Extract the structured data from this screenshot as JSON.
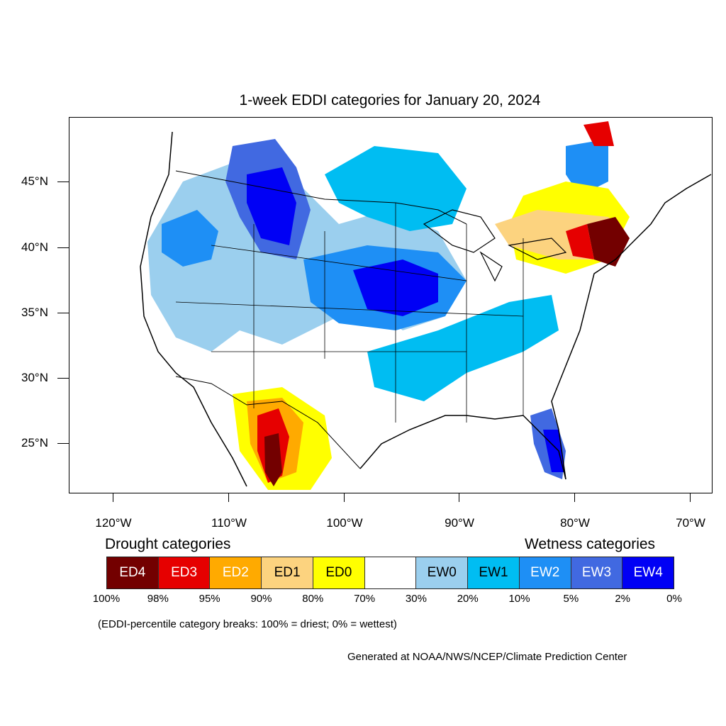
{
  "title": "1-week EDDI categories for January 20, 2024",
  "map": {
    "projection": "lat-lon",
    "lat_axis": {
      "labels": [
        "45°N",
        "40°N",
        "35°N",
        "30°N",
        "25°N"
      ],
      "values": [
        45,
        40,
        35,
        30,
        25
      ]
    },
    "lon_axis": {
      "labels": [
        "120°W",
        "110°W",
        "100°W",
        "90°W",
        "80°W",
        "70°W"
      ],
      "values": [
        -120,
        -110,
        -100,
        -90,
        -80,
        -70
      ]
    },
    "regions": [
      {
        "name": "northern-rockies-plains-wet",
        "category": "EW4"
      },
      {
        "name": "central-plains-wet",
        "category": "EW4"
      },
      {
        "name": "florida-wet",
        "category": "EW4"
      },
      {
        "name": "upper-midwest-wet",
        "category": "EW1"
      },
      {
        "name": "gulf-coast-wet",
        "category": "EW2"
      },
      {
        "name": "west-coast-wet",
        "category": "EW2"
      },
      {
        "name": "chihuahua-dry",
        "category": "ED4"
      },
      {
        "name": "northeast-dry",
        "category": "ED4"
      },
      {
        "name": "great-lakes-dry",
        "category": "ED1"
      },
      {
        "name": "southern-quebec-dry",
        "category": "ED0"
      }
    ]
  },
  "legend": {
    "drought_heading": "Drought categories",
    "wetness_heading": "Wetness categories",
    "categories": [
      {
        "label": "ED4",
        "color": "#730000",
        "text_color": "#ffffff"
      },
      {
        "label": "ED3",
        "color": "#e60000",
        "text_color": "#ffffff"
      },
      {
        "label": "ED2",
        "color": "#ffaa00",
        "text_color": "#ffffff"
      },
      {
        "label": "ED1",
        "color": "#fcd37f",
        "text_color": "#000000"
      },
      {
        "label": "ED0",
        "color": "#ffff00",
        "text_color": "#000000"
      },
      {
        "label": "",
        "color": "#ffffff",
        "text_color": "#000000"
      },
      {
        "label": "EW0",
        "color": "#9bcfee",
        "text_color": "#000000"
      },
      {
        "label": "EW1",
        "color": "#00bdf2",
        "text_color": "#000000"
      },
      {
        "label": "EW2",
        "color": "#1e8ff5",
        "text_color": "#ffffff"
      },
      {
        "label": "EW3",
        "color": "#4169e1",
        "text_color": "#ffffff"
      },
      {
        "label": "EW4",
        "color": "#0000f5",
        "text_color": "#ffffff"
      }
    ],
    "breaks": [
      "100%",
      "98%",
      "95%",
      "90%",
      "80%",
      "70%",
      "30%",
      "20%",
      "10%",
      "5%",
      "2%",
      "0%"
    ]
  },
  "note": "(EDDI-percentile category breaks: 100% = driest; 0% = wettest)",
  "credit": "Generated at NOAA/NWS/NCEP/Climate Prediction Center"
}
